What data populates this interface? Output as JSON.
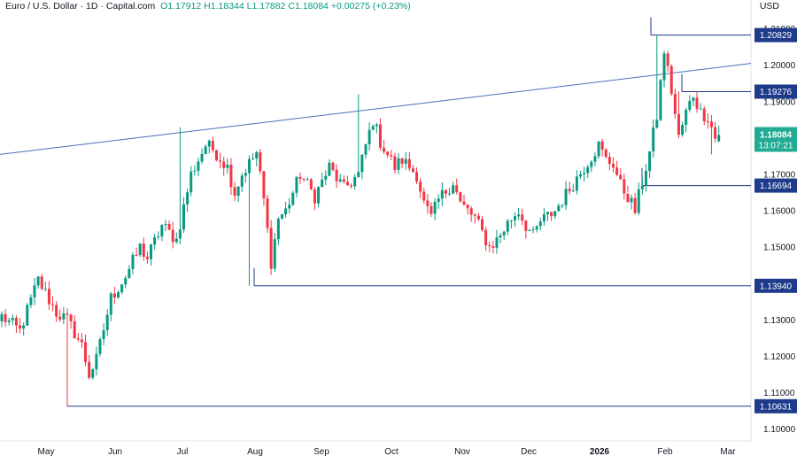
{
  "header": {
    "symbol": "Euro / U.S. Dollar",
    "interval": "1D",
    "source": "Capital.com",
    "open": "O1.17912",
    "high": "H1.18344",
    "low": "L1.17882",
    "close": "C1.18084",
    "change": "+0.00275 (+0.23%)"
  },
  "currency": "USD",
  "colors": {
    "up": "#089981",
    "down": "#f23645",
    "level": "#1e3a8a",
    "price_tag": "#22ab94",
    "trendline": "#4a6fb5"
  },
  "chart_data": {
    "type": "candlestick",
    "title": "Euro / U.S. Dollar · 1D · Capital.com",
    "x_labels": [
      "May",
      "Jun",
      "Jul",
      "Aug",
      "Sep",
      "Oct",
      "Nov",
      "Dec",
      "2026",
      "Feb",
      "Mar"
    ],
    "y_ticks": [
      "1.21000",
      "1.20000",
      "1.19000",
      "1.17000",
      "1.16000",
      "1.15000",
      "1.13000",
      "1.12000",
      "1.11000",
      "1.10000"
    ],
    "ylim": [
      1.0975,
      1.2155
    ],
    "levels": [
      "1.20829",
      "1.19276",
      "1.16694",
      "1.13940",
      "1.10631"
    ],
    "current_price": "1.18084",
    "countdown": "13:07:21",
    "trendline": {
      "from": [
        "early Apr 2025",
        1.1755
      ],
      "to": [
        "late Feb 2026",
        1.2005
      ]
    },
    "anchors": [
      [
        0,
        1.131
      ],
      [
        5,
        1.127
      ],
      [
        10,
        1.141
      ],
      [
        15,
        1.132
      ],
      [
        18,
        1.13
      ],
      [
        22,
        1.123
      ],
      [
        24,
        1.115
      ],
      [
        26,
        1.119
      ],
      [
        30,
        1.136
      ],
      [
        34,
        1.142
      ],
      [
        38,
        1.15
      ],
      [
        40,
        1.147
      ],
      [
        44,
        1.156
      ],
      [
        48,
        1.152
      ],
      [
        52,
        1.17
      ],
      [
        56,
        1.178
      ],
      [
        58,
        1.177
      ],
      [
        62,
        1.172
      ],
      [
        64,
        1.165
      ],
      [
        66,
        1.17
      ],
      [
        70,
        1.176
      ],
      [
        72,
        1.163
      ],
      [
        74,
        1.146
      ],
      [
        76,
        1.158
      ],
      [
        78,
        1.16
      ],
      [
        82,
        1.17
      ],
      [
        86,
        1.164
      ],
      [
        90,
        1.172
      ],
      [
        94,
        1.166
      ],
      [
        98,
        1.17
      ],
      [
        100,
        1.178
      ],
      [
        102,
        1.185
      ],
      [
        104,
        1.179
      ],
      [
        108,
        1.172
      ],
      [
        110,
        1.174
      ],
      [
        114,
        1.17
      ],
      [
        116,
        1.162
      ],
      [
        118,
        1.158
      ],
      [
        120,
        1.163
      ],
      [
        124,
        1.168
      ],
      [
        126,
        1.162
      ],
      [
        130,
        1.158
      ],
      [
        134,
        1.15
      ],
      [
        136,
        1.152
      ],
      [
        140,
        1.158
      ],
      [
        142,
        1.16
      ],
      [
        144,
        1.156
      ],
      [
        146,
        1.153
      ],
      [
        148,
        1.157
      ],
      [
        152,
        1.16
      ],
      [
        156,
        1.166
      ],
      [
        158,
        1.169
      ],
      [
        160,
        1.172
      ],
      [
        162,
        1.175
      ],
      [
        164,
        1.178
      ],
      [
        166,
        1.174
      ],
      [
        168,
        1.173
      ],
      [
        170,
        1.167
      ],
      [
        172,
        1.164
      ],
      [
        174,
        1.16
      ],
      [
        176,
        1.168
      ],
      [
        178,
        1.176
      ],
      [
        180,
        1.186
      ],
      [
        182,
        1.204
      ],
      [
        184,
        1.193
      ],
      [
        186,
        1.18
      ],
      [
        188,
        1.187
      ],
      [
        190,
        1.192
      ],
      [
        192,
        1.187
      ],
      [
        194,
        1.186
      ],
      [
        196,
        1.18
      ],
      [
        197,
        1.181
      ]
    ]
  }
}
